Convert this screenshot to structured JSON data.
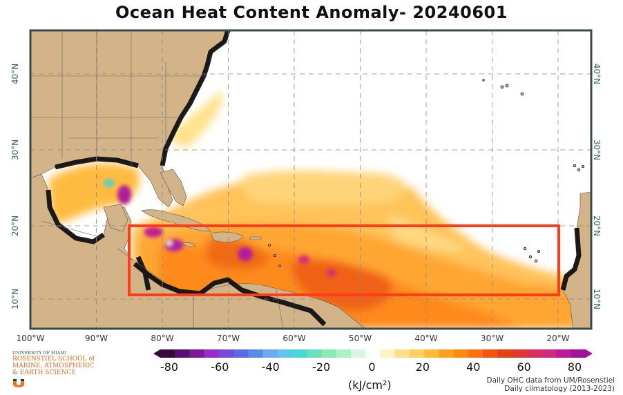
{
  "title": "Ocean Heat Content Anomaly- 20240601",
  "map": {
    "lon_labels": [
      "100°W",
      "90°W",
      "80°W",
      "70°W",
      "60°W",
      "50°W",
      "40°W",
      "30°W",
      "20°W"
    ],
    "lat_labels": [
      "40°N",
      "30°N",
      "20°N",
      "10°N"
    ],
    "extent": {
      "lon_min": -100,
      "lon_max": -15,
      "lat_min": 5,
      "lat_max": 46
    },
    "region_box": {
      "lon_min": -85.5,
      "lon_max": -20,
      "lat_min": 10,
      "lat_max": 20.2
    },
    "colors": {
      "land": "#d3b489",
      "frame": "#3a4a4a",
      "box": "#ff3b1a",
      "grid": "#888888"
    },
    "islands_icon": "island-marks"
  },
  "colorbar": {
    "ticks": [
      "-80",
      "-60",
      "-40",
      "-20",
      "0",
      "20",
      "40",
      "60",
      "80"
    ],
    "units": "(kJ/cm²)",
    "colors": [
      "#3a0a3a",
      "#5a0e6e",
      "#7a1a9a",
      "#9a2acb",
      "#7a4ad8",
      "#5a6ae0",
      "#5a8ae8",
      "#6aaaf0",
      "#5ac8e8",
      "#4ad8d0",
      "#6ae0c0",
      "#8aeab0",
      "#b0f0c8",
      "#d8f6e0",
      "#ffffff",
      "#fff3c0",
      "#ffe08a",
      "#ffd060",
      "#ffbb3a",
      "#ffa020",
      "#ff8a10",
      "#ff7010",
      "#f25510",
      "#e84010",
      "#e03a30",
      "#d8305a",
      "#d02a80",
      "#b81a9a",
      "#a0129a"
    ]
  },
  "credits": {
    "line1": "Daily OHC data from UM/Rosenstiel",
    "line2": "Daily climatology (2013-2023)"
  },
  "logo": {
    "line1": "UNIVERSITY OF MIAMI",
    "line2": "ROSENSTIEL SCHOOL of",
    "line3": "MARINE, ATMOSPHERIC",
    "line4": "& EARTH SCIENCE"
  }
}
